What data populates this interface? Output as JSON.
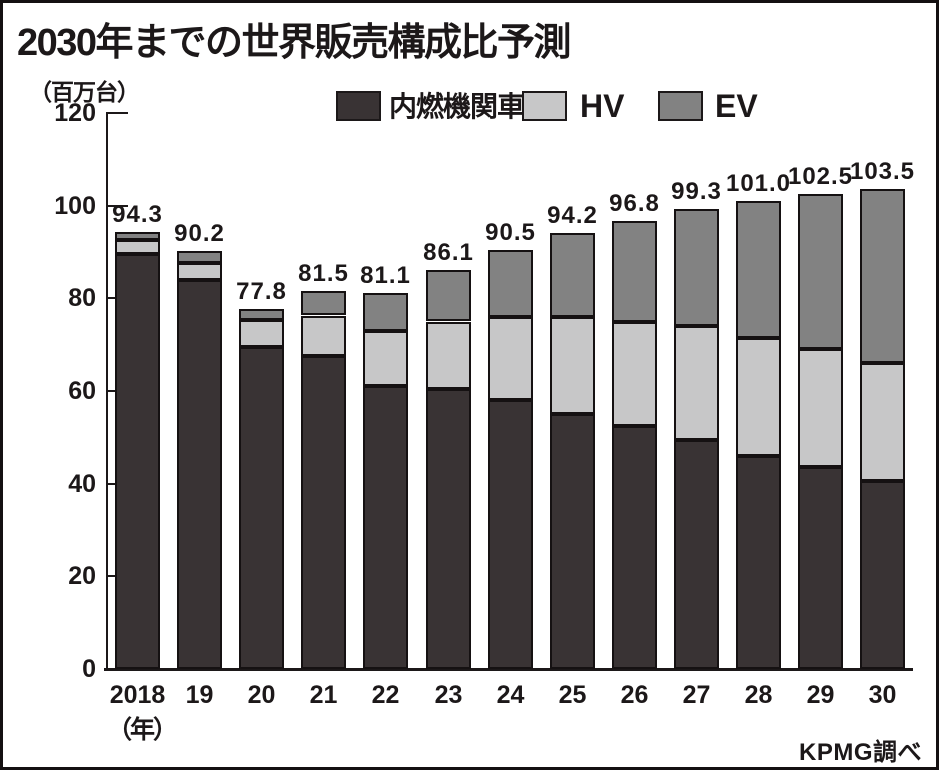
{
  "header": {
    "title": "2030年までの世界販売構成比予測"
  },
  "legend": {
    "items": [
      {
        "label": "内燃機関車",
        "color": "#393334"
      },
      {
        "label": "HV",
        "color": "#c7c7c8"
      },
      {
        "label": "EV",
        "color": "#828282"
      }
    ]
  },
  "source": {
    "label": "KPMG調べ"
  },
  "chart_data": {
    "type": "bar",
    "stacked": true,
    "title": "2030年までの世界販売構成比予測",
    "unit_label": "（百万台）",
    "x_axis_suffix": "（年）",
    "source": "KPMG調べ",
    "legend_position": "top",
    "grid": false,
    "ylim": [
      0,
      120
    ],
    "yticks": [
      0,
      20,
      40,
      60,
      80,
      100,
      120
    ],
    "categories": [
      "2018",
      "19",
      "20",
      "21",
      "22",
      "23",
      "24",
      "25",
      "26",
      "27",
      "28",
      "29",
      "30"
    ],
    "series": [
      {
        "key": "ice",
        "name": "内燃機関車",
        "color": "#393334",
        "values": [
          89.5,
          84.0,
          69.5,
          67.5,
          61.0,
          60.5,
          58.0,
          55.0,
          52.5,
          49.5,
          46.0,
          43.5,
          40.5
        ]
      },
      {
        "key": "hv",
        "name": "HV",
        "color": "#c7c7c8",
        "values": [
          3.0,
          3.7,
          5.8,
          8.8,
          12.0,
          14.5,
          18.0,
          21.0,
          22.5,
          24.5,
          25.5,
          25.5,
          25.5
        ]
      },
      {
        "key": "ev",
        "name": "EV",
        "color": "#828282",
        "values": [
          1.8,
          2.5,
          2.5,
          5.2,
          8.1,
          11.1,
          14.5,
          18.2,
          21.8,
          25.3,
          29.5,
          33.5,
          37.5
        ]
      }
    ],
    "totals": [
      94.3,
      90.2,
      77.8,
      81.5,
      81.1,
      86.1,
      90.5,
      94.2,
      96.8,
      99.3,
      101.0,
      102.5,
      103.5
    ]
  }
}
